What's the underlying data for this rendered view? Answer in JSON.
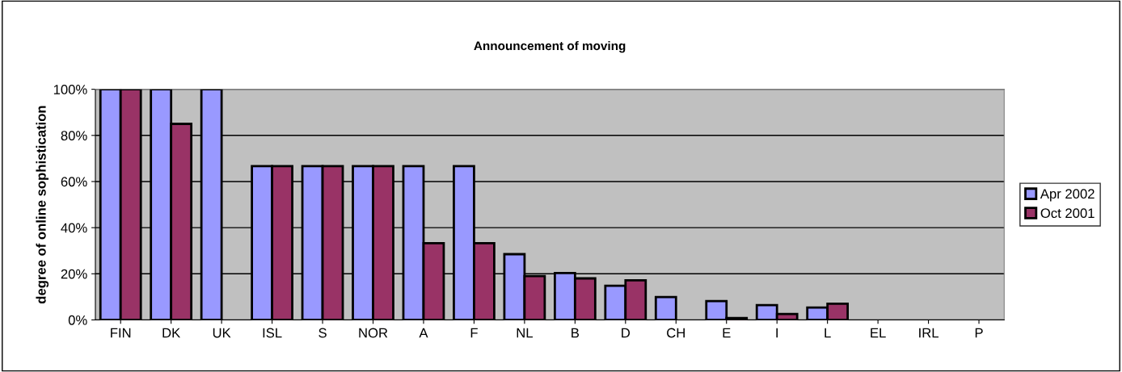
{
  "chart_data": {
    "type": "bar",
    "title": "Announcement of moving",
    "ylabel": "degree of online sophistication",
    "categories": [
      "FIN",
      "DK",
      "UK",
      "ISL",
      "S",
      "NOR",
      "A",
      "F",
      "NL",
      "B",
      "D",
      "CH",
      "E",
      "I",
      "L",
      "EL",
      "IRL",
      "P"
    ],
    "series": [
      {
        "name": "Apr 2002",
        "color": "#9999ff",
        "values": [
          100,
          100,
          100,
          66.7,
          66.7,
          66.7,
          66.7,
          66.7,
          28.5,
          20.3,
          14.8,
          9.9,
          8.2,
          6.4,
          5.4,
          0,
          0,
          0
        ]
      },
      {
        "name": "Oct 2001",
        "color": "#993366",
        "values": [
          100,
          85,
          0,
          66.7,
          66.7,
          66.7,
          33.3,
          33.3,
          19,
          18,
          17.2,
          0,
          0.8,
          2.6,
          7,
          0,
          0,
          0
        ]
      }
    ],
    "ylim": [
      0,
      100
    ],
    "yticks": [
      {
        "value": 0,
        "label": "0%"
      },
      {
        "value": 20,
        "label": "20%"
      },
      {
        "value": 40,
        "label": "40%"
      },
      {
        "value": 60,
        "label": "60%"
      },
      {
        "value": 80,
        "label": "80%"
      },
      {
        "value": 100,
        "label": "100%"
      }
    ],
    "grid": "y",
    "legend": "right"
  }
}
